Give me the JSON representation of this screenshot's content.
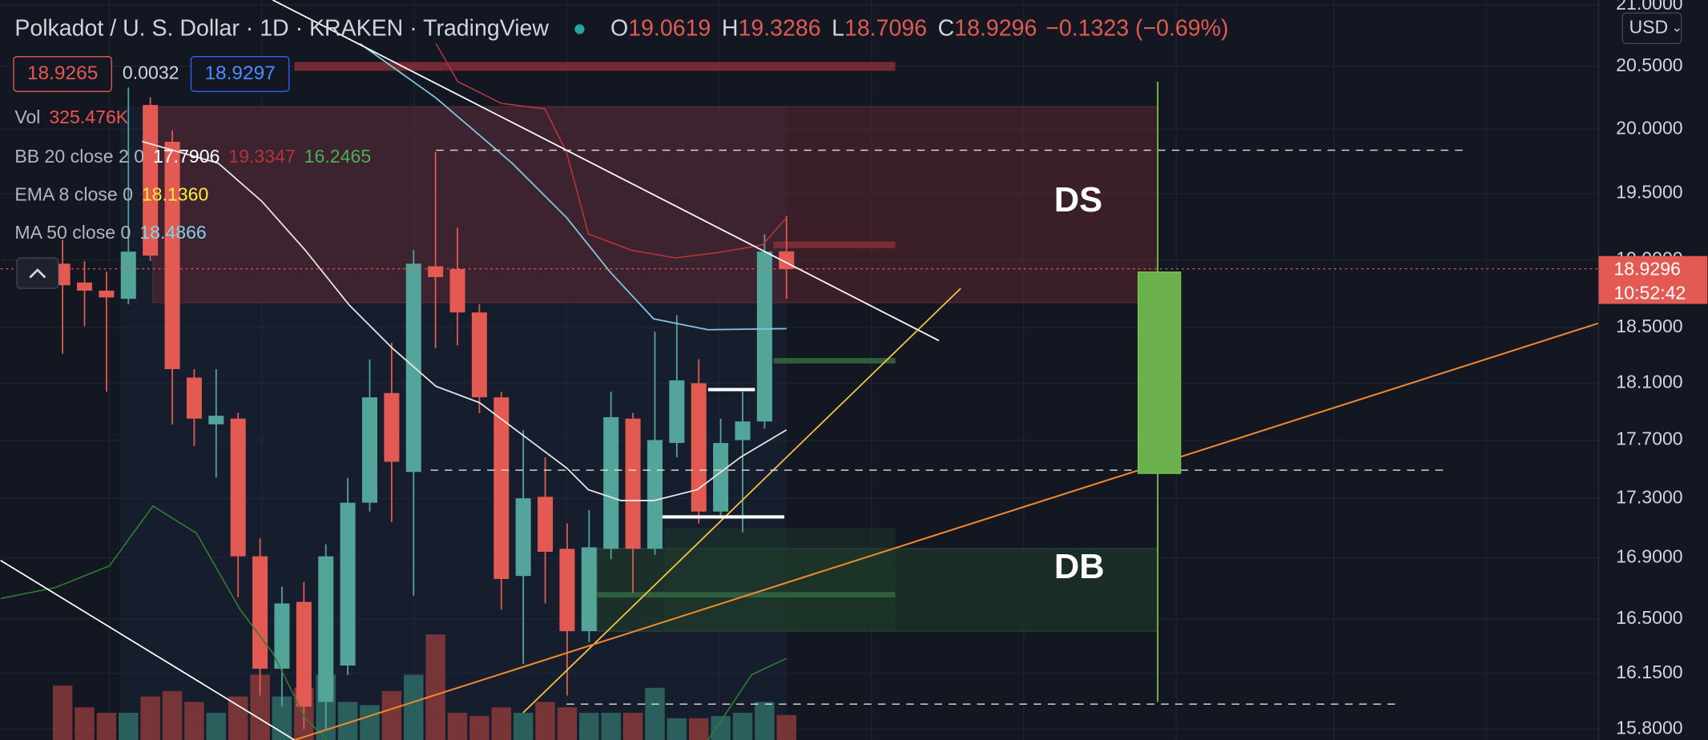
{
  "chart_data": {
    "type": "candlestick",
    "title": "Polkadot / U. S. Dollar · 1D · KRAKEN · TradingView",
    "ohlc_labels": [
      "O",
      "H",
      "L",
      "C"
    ],
    "change": "−0.1323 (−0.69%)",
    "open": [
      18.97,
      18.83,
      18.77,
      18.71,
      20.19,
      19.9,
      18.14,
      17.81,
      17.85,
      16.91,
      16.18,
      16.61,
      15.97,
      16.2,
      17.27,
      18.03,
      17.48,
      18.95,
      18.93,
      18.61,
      18.0,
      16.78,
      17.31,
      16.96,
      16.42,
      16.96,
      17.85,
      16.96,
      17.68,
      18.1,
      17.21,
      17.7,
      17.83,
      19.0619
    ],
    "high": [
      19.15,
      18.99,
      18.91,
      20.33,
      20.25,
      19.99,
      18.2,
      18.2,
      17.89,
      17.03,
      16.71,
      16.74,
      16.99,
      17.44,
      18.27,
      18.39,
      19.07,
      19.82,
      19.24,
      18.67,
      18.04,
      17.77,
      17.58,
      17.13,
      17.22,
      18.04,
      17.89,
      18.47,
      18.59,
      18.27,
      17.85,
      18.04,
      19.19,
      19.3286
    ],
    "low": [
      18.31,
      18.51,
      18.04,
      18.67,
      18.99,
      17.81,
      17.66,
      17.44,
      16.64,
      16.01,
      15.94,
      15.8,
      15.8,
      16.14,
      17.21,
      17.14,
      16.65,
      18.35,
      18.37,
      17.89,
      16.56,
      16.21,
      16.6,
      16.01,
      16.35,
      16.89,
      16.67,
      16.92,
      17.58,
      17.13,
      17.18,
      17.07,
      17.78,
      18.7096
    ],
    "close": [
      18.81,
      18.77,
      18.72,
      19.06,
      19.03,
      18.2,
      17.85,
      17.87,
      16.91,
      16.18,
      16.6,
      15.94,
      16.91,
      17.27,
      18.0,
      17.55,
      18.97,
      18.87,
      18.61,
      18.0,
      16.76,
      17.3,
      16.94,
      16.42,
      16.97,
      17.86,
      16.96,
      17.7,
      18.12,
      17.21,
      17.68,
      17.83,
      19.06,
      18.9296
    ],
    "volume": [
      707500,
      424500,
      353750,
      353750,
      566000,
      636750,
      495250,
      353750,
      566000,
      849000,
      566000,
      679200,
      849000,
      495250,
      452800,
      636750,
      849000,
      1372550,
      353750,
      311300,
      424500,
      353750,
      495250,
      424500,
      353750,
      353750,
      353750,
      679200,
      283000,
      283000,
      311300,
      353750,
      495250,
      325476
    ],
    "colors": {
      "up": "#53a599",
      "down": "#e25a52",
      "volume_up": "#2f6b66",
      "volume_down": "#8a3a3a"
    },
    "ylim": [
      15.733,
      21.04
    ],
    "log_scale": true,
    "grid": true,
    "yticks": [
      {
        "value": 15.8,
        "label": "15.8000"
      },
      {
        "value": 16.15,
        "label": "16.1500"
      },
      {
        "value": 16.5,
        "label": "16.5000"
      },
      {
        "value": 16.9,
        "label": "16.9000"
      },
      {
        "value": 17.3,
        "label": "17.3000"
      },
      {
        "value": 17.7,
        "label": "17.7000"
      },
      {
        "value": 18.1,
        "label": "18.1000"
      },
      {
        "value": 18.5,
        "label": "18.5000"
      },
      {
        "value": 19,
        "label": "19.0000"
      },
      {
        "value": 19.5,
        "label": "19.5000"
      },
      {
        "value": 20,
        "label": "20.0000"
      },
      {
        "value": 20.5,
        "label": "20.5000"
      },
      {
        "value": 21,
        "label": "21.0000"
      }
    ],
    "currency": "USD",
    "countdown": "10:52:42",
    "bid": "18.9265",
    "spread": "0.0032",
    "ask": "18.9297",
    "legend": [
      {
        "name": "Vol",
        "values": [
          "325.476K"
        ],
        "colors": [
          "#ef5350"
        ]
      },
      {
        "name": "BB 20 close 2 0",
        "values": [
          "17.7906",
          "19.3347",
          "16.2465"
        ],
        "colors": [
          "#ffffff",
          "#b3343a",
          "#4caf50"
        ]
      },
      {
        "name": "EMA 8 close 0",
        "values": [
          "18.1360"
        ],
        "colors": [
          "#ffeb3b"
        ]
      },
      {
        "name": "MA 50 close 0",
        "values": [
          "18.4866"
        ],
        "colors": [
          "#7fd3ea"
        ]
      }
    ],
    "annotations": [
      "DS",
      "DB"
    ]
  }
}
